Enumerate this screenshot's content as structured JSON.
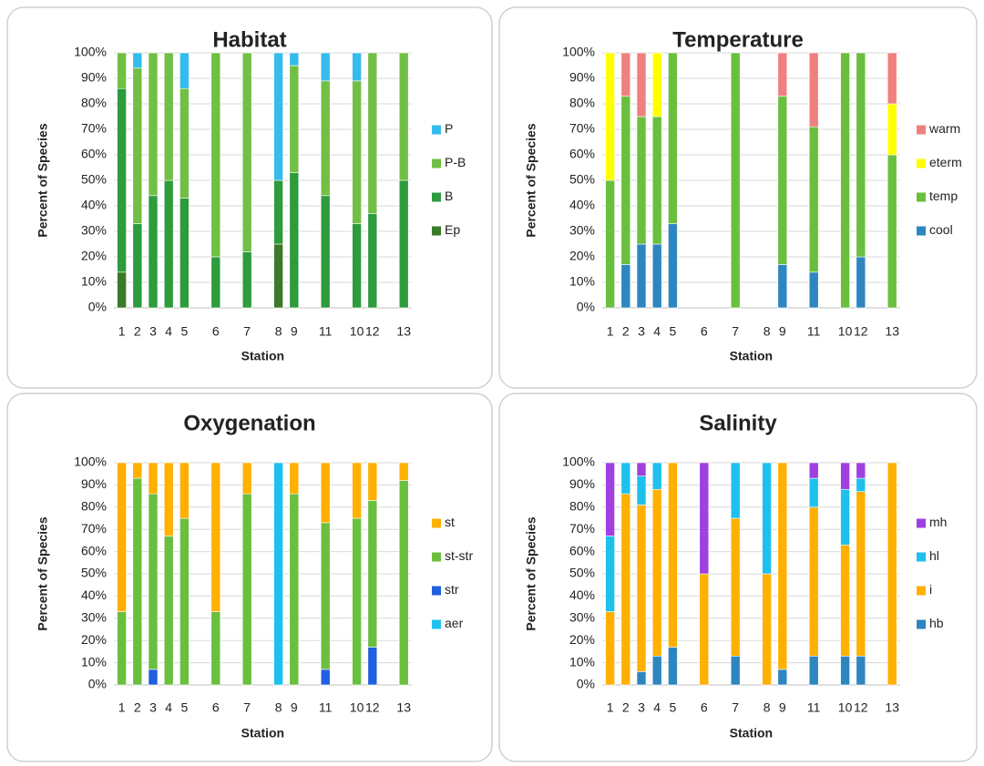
{
  "chart_data": [
    {
      "type": "bar",
      "stacked": true,
      "title": "Habitat",
      "x_label": "Station",
      "y_label": "Percent of Species",
      "categories": [
        "1",
        "2",
        "3",
        "4",
        "5",
        null,
        "6",
        null,
        "7",
        null,
        "8",
        "9",
        null,
        "11",
        null,
        "10",
        "12",
        null,
        "13"
      ],
      "series": [
        {
          "name": "Ep",
          "color": "#3a7a28",
          "values": [
            14,
            0,
            0,
            0,
            0,
            null,
            0,
            null,
            0,
            null,
            25,
            0,
            null,
            0,
            null,
            0,
            0,
            null,
            0
          ]
        },
        {
          "name": "B",
          "color": "#2e9b3c",
          "values": [
            72,
            33,
            44,
            50,
            43,
            null,
            20,
            null,
            22,
            null,
            25,
            53,
            null,
            44,
            null,
            33,
            37,
            null,
            50
          ]
        },
        {
          "name": "P-B",
          "color": "#72bf45",
          "values": [
            14,
            61,
            56,
            50,
            43,
            null,
            80,
            null,
            78,
            null,
            0,
            42,
            null,
            45,
            null,
            56,
            63,
            null,
            50
          ]
        },
        {
          "name": "P",
          "color": "#35bbec",
          "values": [
            0,
            6,
            0,
            0,
            14,
            null,
            0,
            null,
            0,
            null,
            50,
            5,
            null,
            11,
            null,
            11,
            0,
            null,
            0
          ]
        }
      ],
      "ylim": [
        0,
        100
      ],
      "yticks": [
        {
          "value": 0,
          "label": "0%"
        },
        {
          "value": 10,
          "label": "10%"
        },
        {
          "value": 20,
          "label": "20%"
        },
        {
          "value": 30,
          "label": "30%"
        },
        {
          "value": 40,
          "label": "40%"
        },
        {
          "value": 50,
          "label": "50%"
        },
        {
          "value": 60,
          "label": "60%"
        },
        {
          "value": 70,
          "label": "70%"
        },
        {
          "value": 80,
          "label": "80%"
        },
        {
          "value": 90,
          "label": "90%"
        },
        {
          "value": 100,
          "label": "100%"
        }
      ],
      "grid": true,
      "legend": "right"
    },
    {
      "type": "bar",
      "stacked": true,
      "title": "Temperature",
      "x_label": "Station",
      "y_label": "Percent of Species",
      "categories": [
        "1",
        "2",
        "3",
        "4",
        "5",
        null,
        "6",
        null,
        "7",
        null,
        "8",
        "9",
        null,
        "11",
        null,
        "10",
        "12",
        null,
        "13"
      ],
      "series": [
        {
          "name": "cool",
          "color": "#2e86c1",
          "values": [
            0,
            17,
            25,
            25,
            33,
            null,
            0,
            null,
            0,
            null,
            0,
            17,
            null,
            14,
            null,
            0,
            20,
            null,
            0
          ]
        },
        {
          "name": "temp",
          "color": "#6abf3e",
          "values": [
            50,
            66,
            50,
            50,
            67,
            null,
            0,
            null,
            100,
            null,
            0,
            66,
            null,
            57,
            null,
            100,
            80,
            null,
            60
          ]
        },
        {
          "name": "eterm",
          "color": "#ffff00",
          "values": [
            50,
            0,
            0,
            25,
            0,
            null,
            0,
            null,
            0,
            null,
            0,
            0,
            null,
            0,
            null,
            0,
            0,
            null,
            20
          ]
        },
        {
          "name": "warm",
          "color": "#f08080",
          "values": [
            0,
            17,
            25,
            0,
            0,
            null,
            0,
            null,
            0,
            null,
            0,
            17,
            null,
            29,
            null,
            0,
            0,
            null,
            20
          ]
        }
      ],
      "ylim": [
        0,
        100
      ],
      "yticks": [
        {
          "value": 0,
          "label": "0%"
        },
        {
          "value": 10,
          "label": "10%"
        },
        {
          "value": 20,
          "label": "20%"
        },
        {
          "value": 30,
          "label": "30%"
        },
        {
          "value": 40,
          "label": "40%"
        },
        {
          "value": 50,
          "label": "50%"
        },
        {
          "value": 60,
          "label": "60%"
        },
        {
          "value": 70,
          "label": "70%"
        },
        {
          "value": 80,
          "label": "80%"
        },
        {
          "value": 90,
          "label": "90%"
        },
        {
          "value": 100,
          "label": "100%"
        }
      ],
      "grid": true,
      "legend": "right"
    },
    {
      "type": "bar",
      "stacked": true,
      "title": "Oxygenation",
      "x_label": "Station",
      "y_label": "Percent of Species",
      "categories": [
        "1",
        "2",
        "3",
        "4",
        "5",
        null,
        "6",
        null,
        "7",
        null,
        "8",
        "9",
        null,
        "11",
        null,
        "10",
        "12",
        null,
        "13"
      ],
      "series": [
        {
          "name": "aer",
          "color": "#1ec0ee",
          "values": [
            0,
            0,
            0,
            0,
            0,
            null,
            0,
            null,
            0,
            null,
            100,
            0,
            null,
            0,
            null,
            0,
            0,
            null,
            0
          ]
        },
        {
          "name": "str",
          "color": "#1f5fe0",
          "values": [
            0,
            0,
            7,
            0,
            0,
            null,
            0,
            null,
            0,
            null,
            0,
            0,
            null,
            7,
            null,
            0,
            17,
            null,
            0
          ]
        },
        {
          "name": "st-str",
          "color": "#6abf3e",
          "values": [
            33,
            93,
            79,
            67,
            75,
            null,
            33,
            null,
            86,
            null,
            0,
            86,
            null,
            66,
            null,
            75,
            66,
            null,
            92
          ]
        },
        {
          "name": "st",
          "color": "#ffb000",
          "values": [
            67,
            7,
            14,
            33,
            25,
            null,
            67,
            null,
            14,
            null,
            0,
            14,
            null,
            27,
            null,
            25,
            17,
            null,
            8
          ]
        }
      ],
      "ylim": [
        0,
        100
      ],
      "yticks": [
        {
          "value": 0,
          "label": "0%"
        },
        {
          "value": 10,
          "label": "10%"
        },
        {
          "value": 20,
          "label": "20%"
        },
        {
          "value": 30,
          "label": "30%"
        },
        {
          "value": 40,
          "label": "40%"
        },
        {
          "value": 50,
          "label": "50%"
        },
        {
          "value": 60,
          "label": "60%"
        },
        {
          "value": 70,
          "label": "70%"
        },
        {
          "value": 80,
          "label": "80%"
        },
        {
          "value": 90,
          "label": "90%"
        },
        {
          "value": 100,
          "label": "100%"
        }
      ],
      "grid": true,
      "legend": "right"
    },
    {
      "type": "bar",
      "stacked": true,
      "title": "Salinity",
      "x_label": "Station",
      "y_label": "Percent of Species",
      "categories": [
        "1",
        "2",
        "3",
        "4",
        "5",
        null,
        "6",
        null,
        "7",
        null,
        "8",
        "9",
        null,
        "11",
        null,
        "10",
        "12",
        null,
        "13"
      ],
      "series": [
        {
          "name": "hb",
          "color": "#2e86c1",
          "values": [
            0,
            0,
            6,
            13,
            17,
            null,
            0,
            null,
            13,
            null,
            0,
            7,
            null,
            13,
            null,
            13,
            13,
            null,
            0
          ]
        },
        {
          "name": "i",
          "color": "#ffb000",
          "values": [
            33,
            86,
            75,
            75,
            83,
            null,
            50,
            null,
            62,
            null,
            50,
            93,
            null,
            67,
            null,
            50,
            74,
            null,
            100
          ]
        },
        {
          "name": "hl",
          "color": "#1ec0ee",
          "values": [
            34,
            14,
            13,
            12,
            0,
            null,
            0,
            null,
            25,
            null,
            50,
            0,
            null,
            13,
            null,
            25,
            6,
            null,
            0
          ]
        },
        {
          "name": "mh",
          "color": "#a040e0",
          "values": [
            33,
            0,
            6,
            0,
            0,
            null,
            50,
            null,
            0,
            null,
            0,
            0,
            null,
            7,
            null,
            12,
            7,
            null,
            0
          ]
        }
      ],
      "ylim": [
        0,
        100
      ],
      "yticks": [
        {
          "value": 0,
          "label": "0%"
        },
        {
          "value": 10,
          "label": "10%"
        },
        {
          "value": 20,
          "label": "20%"
        },
        {
          "value": 30,
          "label": "30%"
        },
        {
          "value": 40,
          "label": "40%"
        },
        {
          "value": 50,
          "label": "50%"
        },
        {
          "value": 60,
          "label": "60%"
        },
        {
          "value": 70,
          "label": "70%"
        },
        {
          "value": 80,
          "label": "80%"
        },
        {
          "value": 90,
          "label": "90%"
        },
        {
          "value": 100,
          "label": "100%"
        }
      ],
      "grid": true,
      "legend": "right"
    }
  ]
}
